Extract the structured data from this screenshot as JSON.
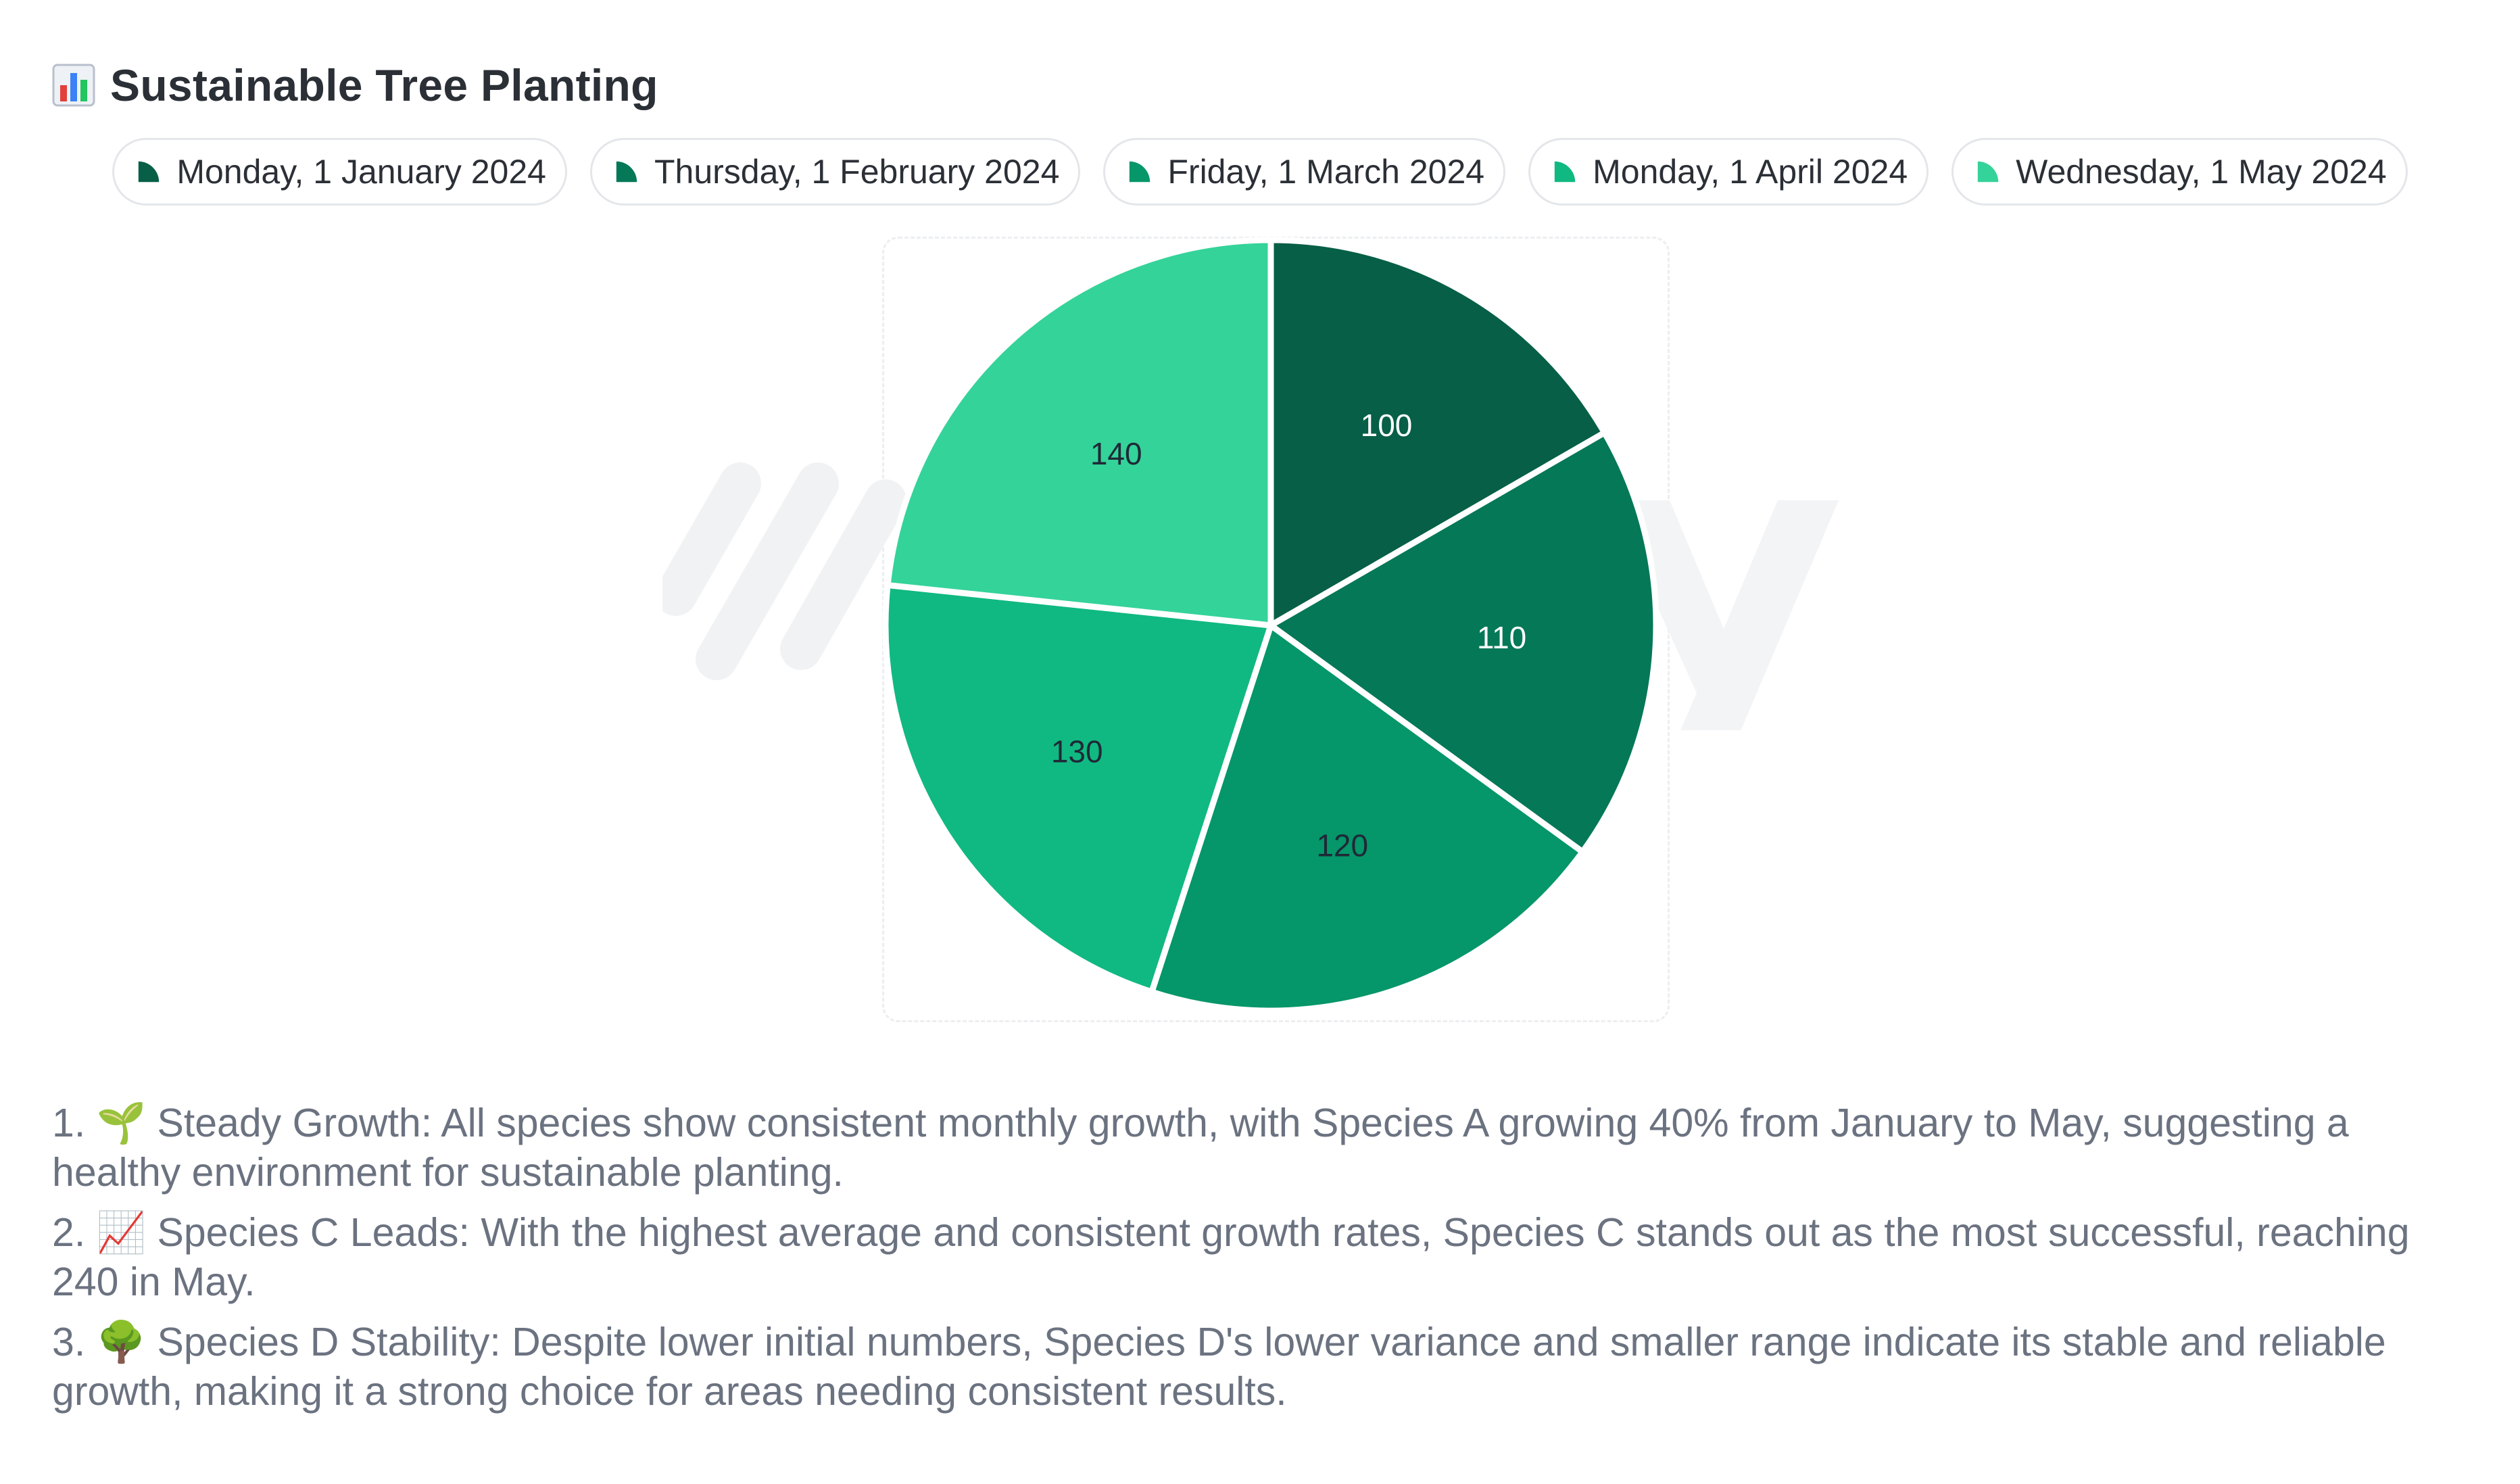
{
  "title": "Sustainable Tree Planting",
  "title_icon": "bar-chart-icon",
  "legend": [
    {
      "label": "Monday, 1 January 2024",
      "color": "#065f46"
    },
    {
      "label": "Thursday, 1 February 2024",
      "color": "#047857"
    },
    {
      "label": "Friday, 1 March 2024",
      "color": "#059669"
    },
    {
      "label": "Monday, 1 April 2024",
      "color": "#10b981"
    },
    {
      "label": "Wednesday, 1 May 2024",
      "color": "#34d399"
    }
  ],
  "chart_data": {
    "type": "pie",
    "title": "Sustainable Tree Planting",
    "categories": [
      "Monday, 1 January 2024",
      "Thursday, 1 February 2024",
      "Friday, 1 March 2024",
      "Monday, 1 April 2024",
      "Wednesday, 1 May 2024"
    ],
    "values": [
      100,
      110,
      120,
      130,
      140
    ],
    "colors": [
      "#065f46",
      "#047857",
      "#059669",
      "#10b981",
      "#34d399"
    ],
    "label_colors": [
      "#ffffff",
      "#ffffff",
      "#1f2937",
      "#1f2937",
      "#1f2937"
    ],
    "legend_position": "top"
  },
  "insights": [
    {
      "number": "1.",
      "emoji": "🌱",
      "text": "Steady Growth: All species show consistent monthly growth, with Species A growing 40% from January to May, suggesting a healthy environment for sustainable planting."
    },
    {
      "number": "2.",
      "emoji": "📈",
      "text": "Species C Leads: With the highest average and consistent growth rates, Species C stands out as the most successful, reaching 240 in May."
    },
    {
      "number": "3.",
      "emoji": "🌳",
      "text": "Species D Stability: Despite lower initial numbers, Species D's lower variance and smaller range indicate its stable and reliable growth, making it a strong choice for areas needing consistent results."
    }
  ]
}
